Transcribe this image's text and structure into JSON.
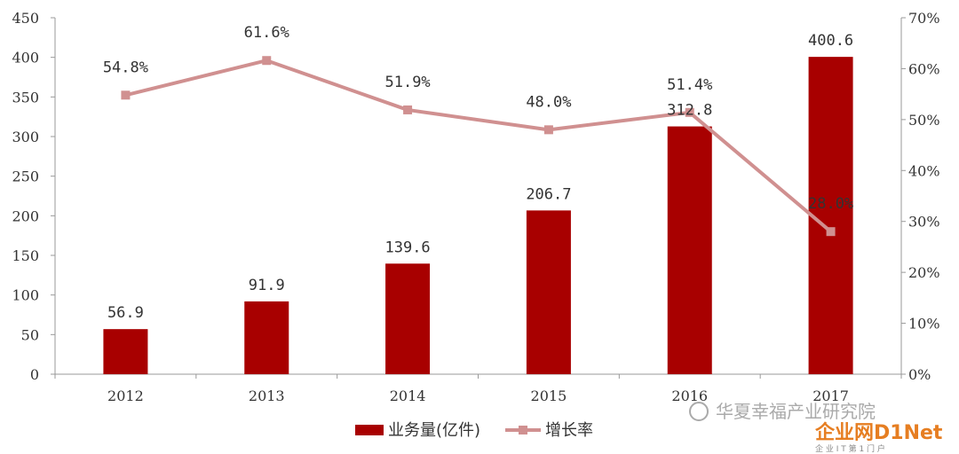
{
  "chart_data": {
    "type": "bar+line",
    "categories": [
      "2012",
      "2013",
      "2014",
      "2015",
      "2016",
      "2017"
    ],
    "series": [
      {
        "name": "业务量(亿件)",
        "type": "bar",
        "axis": "left",
        "values": [
          56.9,
          91.9,
          139.6,
          206.7,
          312.8,
          400.6
        ],
        "labels": [
          "56.9",
          "91.9",
          "139.6",
          "206.7",
          "312.8",
          "400.6"
        ]
      },
      {
        "name": "增长率",
        "type": "line",
        "axis": "right",
        "values": [
          54.8,
          61.6,
          51.9,
          48.0,
          51.4,
          28.0
        ],
        "labels": [
          "54.8%",
          "61.6%",
          "51.9%",
          "48.0%",
          "51.4%",
          "28.0%"
        ]
      }
    ],
    "y_left": {
      "range": [
        0,
        450
      ],
      "ticks": [
        "0",
        "50",
        "100",
        "150",
        "200",
        "250",
        "300",
        "350",
        "400",
        "450"
      ]
    },
    "y_right": {
      "range": [
        0,
        70
      ],
      "ticks": [
        "0%",
        "10%",
        "20%",
        "30%",
        "40%",
        "50%",
        "60%",
        "70%"
      ]
    },
    "grid": false,
    "legend": "bottom-center",
    "colors": {
      "bar": "#a80000",
      "line": "#d09090"
    }
  },
  "watermarks": {
    "wechat": "华夏幸福产业研究院",
    "site": "企业网D1Net",
    "site_sub": "企 业 I T 第 1 门 户"
  }
}
